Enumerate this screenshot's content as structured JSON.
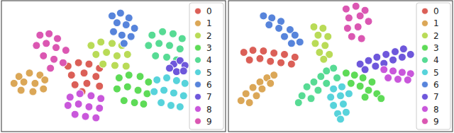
{
  "chart_data": [
    {
      "type": "scatter",
      "xlim": [
        0,
        320
      ],
      "ylim": [
        0,
        190
      ],
      "tick_labels": false,
      "legend": "upper right",
      "marker": "o",
      "series": [
        {
          "name": "0",
          "color": "#db5f57",
          "x": [
            95,
            110,
            125,
            140,
            100,
            118,
            135,
            105,
            122,
            140,
            115
          ],
          "values": [
            95,
            100,
            98,
            92,
            82,
            85,
            80,
            68,
            70,
            66,
            58
          ]
        },
        {
          "name": "1",
          "color": "#dba757",
          "x": [
            25,
            40,
            55,
            18,
            32,
            48,
            62,
            28,
            45,
            60
          ],
          "values": [
            80,
            85,
            82,
            70,
            72,
            70,
            75,
            60,
            58,
            62
          ]
        },
        {
          "name": "2",
          "color": "#b9db57",
          "x": [
            128,
            142,
            158,
            172,
            135,
            150,
            165,
            180,
            145,
            162,
            178
          ],
          "values": [
            125,
            130,
            128,
            125,
            112,
            115,
            110,
            112,
            98,
            96,
            95
          ]
        },
        {
          "name": "3",
          "color": "#5edb57",
          "x": [
            168,
            182,
            198,
            210,
            165,
            180,
            195,
            208,
            175,
            190,
            203
          ],
          "values": [
            78,
            82,
            80,
            72,
            62,
            65,
            60,
            55,
            45,
            42,
            40
          ]
        },
        {
          "name": "4",
          "color": "#57db94",
          "x": [
            215,
            230,
            245,
            258,
            210,
            225,
            240,
            255,
            220,
            236,
            250
          ],
          "values": [
            140,
            145,
            142,
            135,
            125,
            128,
            125,
            120,
            110,
            108,
            104
          ]
        },
        {
          "name": "5",
          "color": "#57d3db",
          "x": [
            222,
            236,
            250,
            262,
            218,
            232,
            246,
            260,
            228,
            242,
            255
          ],
          "values": [
            75,
            78,
            74,
            70,
            58,
            60,
            56,
            52,
            42,
            38,
            36
          ]
        },
        {
          "name": "6",
          "color": "#5784db",
          "x": [
            158,
            170,
            182,
            165,
            178,
            190,
            160,
            172,
            185,
            175
          ],
          "values": [
            168,
            172,
            165,
            158,
            155,
            150,
            145,
            140,
            138,
            128
          ]
        },
        {
          "name": "7",
          "color": "#6e57db",
          "x": [
            246,
            255,
            262,
            250,
            260,
            240
          ],
          "values": [
            98,
            103,
            96,
            87,
            88,
            92
          ]
        },
        {
          "name": "8",
          "color": "#c957db",
          "x": [
            98,
            112,
            128,
            142,
            95,
            110,
            125,
            140,
            105,
            120,
            135
          ],
          "values": [
            50,
            55,
            52,
            48,
            38,
            40,
            36,
            34,
            25,
            22,
            20
          ]
        },
        {
          "name": "9",
          "color": "#db57b2",
          "x": [
            55,
            68,
            80,
            50,
            64,
            78,
            92,
            60,
            75,
            88,
            70
          ],
          "values": [
            140,
            142,
            135,
            125,
            128,
            122,
            118,
            110,
            105,
            100,
            92
          ]
        }
      ]
    },
    {
      "type": "scatter",
      "xlim": [
        0,
        320
      ],
      "ylim": [
        0,
        190
      ],
      "tick_labels": false,
      "legend": "upper right",
      "marker": "o",
      "series": [
        {
          "name": "0",
          "color": "#db5f57",
          "x": [
            22,
            35,
            50,
            65,
            80,
            95,
            30,
            45,
            60,
            75,
            90
          ],
          "values": [
            115,
            118,
            117,
            114,
            112,
            108,
            104,
            106,
            102,
            100,
            98
          ]
        },
        {
          "name": "1",
          "color": "#dba757",
          "x": [
            65,
            55,
            45,
            60,
            35,
            48,
            25,
            40,
            18,
            30
          ],
          "values": [
            82,
            78,
            72,
            70,
            64,
            62,
            55,
            52,
            45,
            42
          ]
        },
        {
          "name": "2",
          "color": "#b9db57",
          "x": [
            122,
            135,
            128,
            142,
            124,
            138,
            130,
            144,
            136
          ],
          "values": [
            152,
            150,
            140,
            138,
            128,
            125,
            115,
            112,
            105
          ]
        },
        {
          "name": "3",
          "color": "#5edb57",
          "x": [
            168,
            180,
            192,
            205,
            175,
            188,
            200,
            212,
            195,
            218
          ],
          "values": [
            85,
            82,
            78,
            72,
            70,
            66,
            60,
            55,
            50,
            48
          ]
        },
        {
          "name": "4",
          "color": "#57db94",
          "x": [
            150,
            140,
            155,
            132,
            122,
            140,
            112,
            128,
            105,
            118,
            100
          ],
          "values": [
            92,
            88,
            78,
            80,
            72,
            70,
            65,
            60,
            52,
            48,
            42
          ]
        },
        {
          "name": "5",
          "color": "#57d3db",
          "x": [
            150,
            162,
            146,
            160,
            172,
            150,
            164,
            156,
            168,
            160
          ],
          "values": [
            62,
            65,
            50,
            52,
            55,
            38,
            40,
            26,
            28,
            18
          ]
        },
        {
          "name": "6",
          "color": "#5784db",
          "x": [
            50,
            62,
            75,
            58,
            72,
            88,
            80,
            95,
            102,
            90
          ],
          "values": [
            168,
            165,
            160,
            155,
            150,
            148,
            138,
            140,
            130,
            128
          ]
        },
        {
          "name": "7",
          "color": "#6e57db",
          "x": [
            188,
            200,
            212,
            225,
            238,
            250,
            195,
            210,
            222,
            235,
            248,
            260
          ],
          "values": [
            98,
            103,
            108,
            112,
            116,
            120,
            90,
            95,
            99,
            104,
            108,
            112
          ]
        },
        {
          "name": "8",
          "color": "#c957db",
          "x": [
            222,
            235,
            248,
            260,
            228,
            242,
            256
          ],
          "values": [
            90,
            88,
            86,
            84,
            78,
            76,
            75
          ]
        },
        {
          "name": "9",
          "color": "#db57b2",
          "x": [
            168,
            182,
            195,
            172,
            188,
            200,
            170,
            185,
            176,
            190
          ],
          "values": [
            178,
            182,
            176,
            165,
            168,
            160,
            150,
            152,
            138,
            135
          ]
        }
      ]
    }
  ]
}
